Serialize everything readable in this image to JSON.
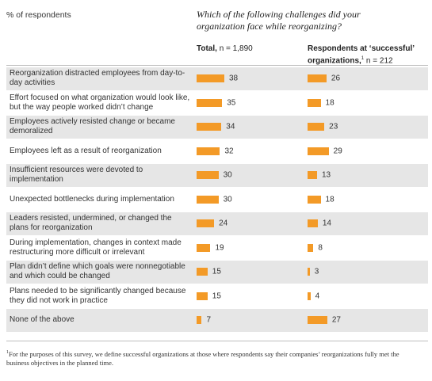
{
  "unit_label": "% of respondents",
  "question": "Which of the following challenges did your organization face while reorganizing?",
  "columns": {
    "total": {
      "title": "Total,",
      "n": "n = 1,890"
    },
    "successful": {
      "title": "Respondents at ‘successful’ organizations,",
      "footnote_mark": "1",
      "n": "n = 212"
    }
  },
  "bar_color": "#f39a27",
  "shade_color": "#e6e6e6",
  "chart_data": {
    "type": "bar",
    "orientation": "horizontal",
    "categories": [
      "Reorganization distracted employees from day-to-day activities",
      "Effort focused on what organization would look like, but the way people worked didn’t change",
      "Employees actively resisted change or became demoralized",
      "Employees left as a result of reorganization",
      "Insufficient resources were devoted to implementation",
      "Unexpected bottlenecks during implementation",
      "Leaders resisted, undermined, or changed the plans for reorganization",
      "During implementation, changes in context made restructuring more difficult or irrelevant",
      "Plan didn’t define which goals were nonnegotiable and which could be changed",
      "Plans needed to be significantly changed because they did not work in practice",
      "None of the above"
    ],
    "series": [
      {
        "name": "Total, n = 1,890",
        "values": [
          38,
          35,
          34,
          32,
          30,
          30,
          24,
          19,
          15,
          15,
          7
        ]
      },
      {
        "name": "Respondents at ‘successful’ organizations, n = 212",
        "values": [
          26,
          18,
          23,
          29,
          13,
          18,
          14,
          8,
          3,
          4,
          27
        ]
      }
    ]
  },
  "footnote": {
    "mark": "1",
    "text": "For the purposes of this survey, we define successful organizations at those where respondents say their companies’ reorganizations fully met the business objectives in the planned time."
  }
}
